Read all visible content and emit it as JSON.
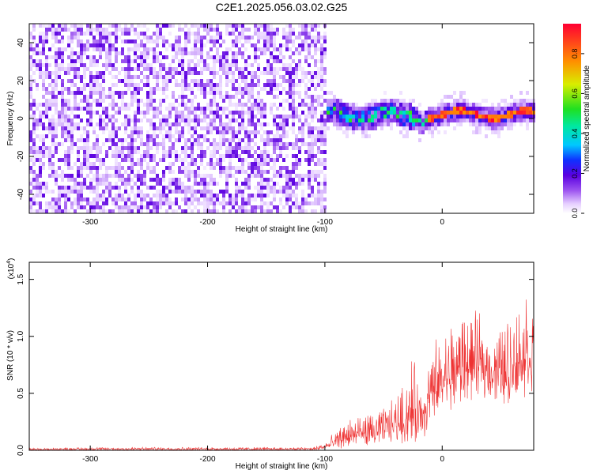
{
  "title": "C2E1.2025.056.03.02.G25",
  "chart_data": [
    {
      "type": "heatmap",
      "xlabel": "Height of straight line (km)",
      "ylabel": "Frequency (Hz)",
      "xlim": [
        -352,
        78
      ],
      "ylim": [
        -50,
        50
      ],
      "xticks": [
        -300,
        -200,
        -100,
        0
      ],
      "yticks": [
        -40,
        -20,
        0,
        20,
        40
      ],
      "colorbar": {
        "label": "Normalized spectral amplitude",
        "range": [
          0,
          0.95
        ],
        "ticks": [
          0.0,
          0.2,
          0.4,
          0.6,
          0.8
        ]
      },
      "regions": [
        {
          "x_range": [
            -352,
            -100
          ],
          "freq_range": [
            -50,
            50
          ],
          "amplitude": "low (0.0-0.15), broadband noise"
        },
        {
          "x_range": [
            -100,
            78
          ],
          "freq_range": [
            -8,
            8
          ],
          "amplitude": "0.1-0.5, narrow band near 0 Hz"
        },
        {
          "x_range": [
            -20,
            75
          ],
          "freq_center": 2,
          "amplitude": "peak ~0.9 along center line"
        }
      ]
    },
    {
      "type": "line",
      "xlabel": "Height of straight line (km)",
      "ylabel": "SNR (10 * v/v)",
      "scale_label": "(x10",
      "scale_exponent": "4",
      "xlim": [
        -352,
        78
      ],
      "ylim": [
        0,
        1.65
      ],
      "xticks": [
        -300,
        -200,
        -100,
        0
      ],
      "yticks": [
        0.0,
        0.5,
        1.0,
        1.5
      ],
      "ytick_labels": [
        "0.0",
        "0.5",
        "1.0",
        "1.5"
      ],
      "series_color": "#ee3333",
      "envelope": {
        "x": [
          -352,
          -300,
          -200,
          -110,
          -100,
          -90,
          -80,
          -70,
          -60,
          -50,
          -40,
          -30,
          -25,
          -20,
          -15,
          -10,
          0,
          10,
          20,
          30,
          40,
          50,
          60,
          70,
          78
        ],
        "low": [
          0.0,
          0.0,
          0.0,
          0.0,
          0.0,
          0.01,
          0.02,
          0.03,
          0.04,
          0.06,
          0.07,
          0.05,
          0.03,
          0.05,
          0.1,
          0.2,
          0.3,
          0.35,
          0.4,
          0.45,
          0.45,
          0.4,
          0.4,
          0.45,
          0.5
        ],
        "high": [
          0.02,
          0.03,
          0.03,
          0.03,
          0.08,
          0.18,
          0.3,
          0.35,
          0.35,
          0.4,
          0.5,
          0.7,
          0.9,
          0.65,
          0.75,
          0.95,
          1.1,
          1.25,
          1.3,
          1.25,
          1.1,
          1.15,
          1.3,
          1.45,
          1.4
        ]
      }
    }
  ]
}
